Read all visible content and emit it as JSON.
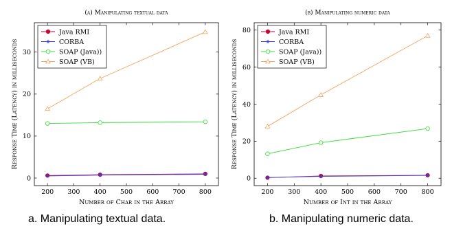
{
  "chart_data": [
    {
      "type": "line",
      "title": "(a) Manipulating textual data",
      "xlabel": "Number of Char in the Array",
      "ylabel": "Response Time (Latency) in milliseconds",
      "x": [
        200,
        400,
        800
      ],
      "xlim": [
        150,
        850
      ],
      "ylim": [
        -1.8,
        37
      ],
      "xticks": [
        200,
        300,
        400,
        500,
        600,
        700,
        800
      ],
      "yticks": [
        0,
        10,
        20,
        30
      ],
      "grid": false,
      "legend_position": "top-left",
      "series": [
        {
          "name": "Java RMI",
          "values": [
            0.6,
            0.8,
            1.0
          ],
          "color": "#cc0033",
          "marker": "filled-circle"
        },
        {
          "name": "CORBA",
          "values": [
            0.5,
            0.7,
            0.9
          ],
          "color": "#3344dd",
          "marker": "star"
        },
        {
          "name": "SOAP (Java))",
          "values": [
            13.0,
            13.2,
            13.4
          ],
          "color": "#33dd33",
          "marker": "open-circle"
        },
        {
          "name": "SOAP (VB)",
          "values": [
            16.5,
            23.7,
            34.8
          ],
          "color": "#f7a35c",
          "marker": "triangle"
        }
      ]
    },
    {
      "type": "line",
      "title": "(b) Manipulating numeric data",
      "xlabel": "Number of Int in the Array",
      "ylabel": "Response Time (Latency) in milliseconds",
      "x": [
        200,
        400,
        800
      ],
      "xlim": [
        150,
        850
      ],
      "ylim": [
        -4,
        84
      ],
      "xticks": [
        200,
        300,
        400,
        500,
        600,
        700,
        800
      ],
      "yticks": [
        0,
        20,
        40,
        60,
        80
      ],
      "grid": false,
      "legend_position": "top-left",
      "series": [
        {
          "name": "Java RMI",
          "values": [
            0.3,
            1.2,
            1.6
          ],
          "color": "#cc0033",
          "marker": "filled-circle"
        },
        {
          "name": "CORBA",
          "values": [
            0.4,
            1.0,
            1.5
          ],
          "color": "#3344dd",
          "marker": "star"
        },
        {
          "name": "SOAP (Java))",
          "values": [
            13.2,
            19.2,
            26.8
          ],
          "color": "#33dd33",
          "marker": "open-circle"
        },
        {
          "name": "SOAP (VB)",
          "values": [
            28.0,
            45.0,
            77.0
          ],
          "color": "#f7a35c",
          "marker": "triangle"
        }
      ]
    }
  ],
  "captions": {
    "a": "a. Manipulating textual data.",
    "b": "b. Manipulating numeric data."
  }
}
